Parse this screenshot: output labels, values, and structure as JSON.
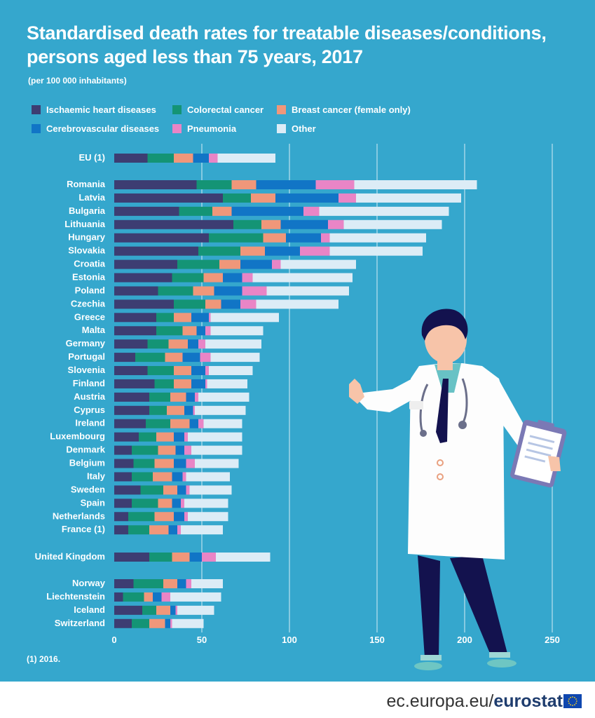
{
  "title": "Standardised death rates for treatable diseases/conditions, persons aged less than 75 years, 2017",
  "subtitle": "(per 100 000 inhabitants)",
  "legend": [
    {
      "label": "Ischaemic heart diseases",
      "color": "#3d3d72"
    },
    {
      "label": "Colorectal cancer",
      "color": "#149475"
    },
    {
      "label": "Breast cancer (female only)",
      "color": "#f0977a"
    },
    {
      "label": "Cerebrovascular diseases",
      "color": "#1175c6"
    },
    {
      "label": "Pneumonia",
      "color": "#e985c6"
    },
    {
      "label": "Other",
      "color": "#dcecf6"
    }
  ],
  "footnote": "(1) 2016.",
  "footer": {
    "domain": "ec.europa.eu/",
    "brand": "eurostat"
  },
  "chart_data": {
    "type": "bar",
    "orientation": "horizontal",
    "stacked": true,
    "title": "Standardised death rates for treatable diseases/conditions, persons aged less than 75 years, 2017",
    "xlim": [
      0,
      250
    ],
    "xticks": [
      0,
      50,
      100,
      150,
      200,
      250
    ],
    "grid": true,
    "categories": [
      "EU (1)",
      "Romania",
      "Latvia",
      "Bulgaria",
      "Lithuania",
      "Hungary",
      "Slovakia",
      "Croatia",
      "Estonia",
      "Poland",
      "Czechia",
      "Greece",
      "Malta",
      "Germany",
      "Portugal",
      "Slovenia",
      "Finland",
      "Austria",
      "Cyprus",
      "Ireland",
      "Luxembourg",
      "Denmark",
      "Belgium",
      "Italy",
      "Sweden",
      "Spain",
      "Netherlands",
      "France (1)",
      "United Kingdom",
      "Norway",
      "Liechtenstein",
      "Iceland",
      "Switzerland"
    ],
    "groups": [
      [
        0
      ],
      [
        1,
        2,
        3,
        4,
        5,
        6,
        7,
        8,
        9,
        10,
        11,
        12,
        13,
        14,
        15,
        16,
        17,
        18,
        19,
        20,
        21,
        22,
        23,
        24,
        25,
        26,
        27
      ],
      [
        28
      ],
      [
        29,
        30,
        31,
        32
      ]
    ],
    "series": [
      {
        "name": "Ischaemic heart diseases",
        "values": [
          19,
          47,
          62,
          37,
          68,
          54,
          48,
          36,
          33,
          25,
          34,
          24,
          24,
          19,
          12,
          19,
          23,
          20,
          20,
          18,
          14,
          10,
          11,
          10,
          15,
          10,
          8,
          8,
          20,
          11,
          5,
          16,
          10
        ]
      },
      {
        "name": "Colorectal cancer",
        "values": [
          15,
          20,
          16,
          19,
          16,
          31,
          24,
          24,
          18,
          20,
          18,
          10,
          15,
          12,
          17,
          15,
          11,
          12,
          10,
          14,
          10,
          15,
          12,
          12,
          13,
          15,
          15,
          12,
          13,
          17,
          12,
          8,
          10
        ]
      },
      {
        "name": "Breast cancer (female only)",
        "values": [
          11,
          14,
          14,
          11,
          11,
          13,
          14,
          12,
          11,
          12,
          9,
          10,
          8,
          11,
          10,
          10,
          10,
          9,
          10,
          11,
          10,
          10,
          11,
          11,
          8,
          8,
          11,
          11,
          10,
          8,
          5,
          8,
          9
        ]
      },
      {
        "name": "Cerebrovascular diseases",
        "values": [
          9,
          34,
          36,
          41,
          27,
          20,
          20,
          18,
          11,
          16,
          11,
          10,
          5,
          6,
          10,
          8,
          8,
          5,
          5,
          5,
          6,
          5,
          7,
          6,
          5,
          5,
          6,
          5,
          7,
          5,
          5,
          3,
          3
        ]
      },
      {
        "name": "Pneumonia",
        "values": [
          5,
          22,
          10,
          9,
          9,
          5,
          17,
          5,
          6,
          14,
          9,
          1,
          3,
          4,
          6,
          2,
          1,
          2,
          1,
          3,
          2,
          4,
          5,
          2,
          2,
          2,
          2,
          2,
          8,
          3,
          5,
          1,
          1
        ]
      },
      {
        "name": "Other",
        "values": [
          33,
          70,
          60,
          74,
          56,
          55,
          53,
          43,
          57,
          47,
          47,
          39,
          30,
          32,
          28,
          25,
          23,
          29,
          29,
          22,
          31,
          29,
          25,
          25,
          24,
          25,
          23,
          24,
          31,
          18,
          29,
          21,
          18
        ]
      }
    ]
  }
}
